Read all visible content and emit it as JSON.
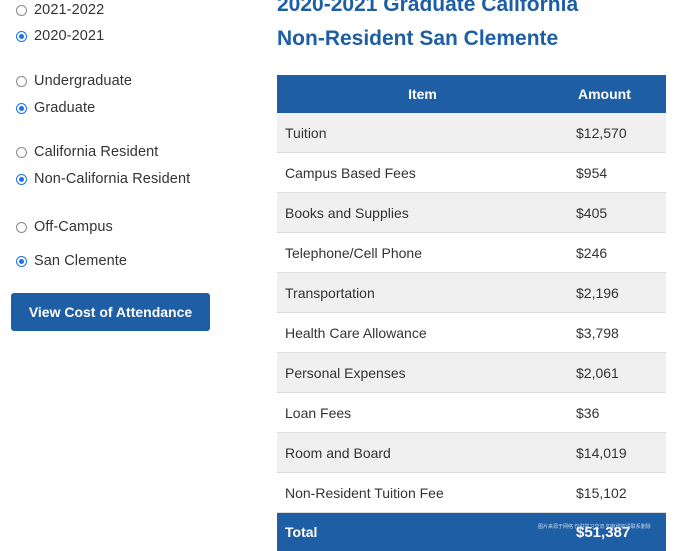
{
  "filters": {
    "year": {
      "options": [
        {
          "label": "2021-2022",
          "checked": false
        },
        {
          "label": "2020-2021",
          "checked": true
        }
      ]
    },
    "level": {
      "options": [
        {
          "label": "Undergraduate",
          "checked": false
        },
        {
          "label": "Graduate",
          "checked": true
        }
      ]
    },
    "residency": {
      "options": [
        {
          "label": "California Resident",
          "checked": false
        },
        {
          "label": "Non-California Resident",
          "checked": true
        }
      ]
    },
    "housing": {
      "options": [
        {
          "label": "Off-Campus",
          "checked": false
        },
        {
          "label": "San Clemente",
          "checked": true
        }
      ]
    }
  },
  "cta_label": "View Cost of Attendance",
  "result": {
    "title_line1": "2020-2021 Graduate California",
    "title_line2": "Non-Resident San Clemente",
    "table": {
      "headers": {
        "item": "Item",
        "amount": "Amount"
      },
      "rows": [
        {
          "item": "Tuition",
          "amount": "$12,570"
        },
        {
          "item": "Campus Based Fees",
          "amount": "$954"
        },
        {
          "item": "Books and Supplies",
          "amount": "$405"
        },
        {
          "item": "Telephone/Cell Phone",
          "amount": "$246"
        },
        {
          "item": "Transportation",
          "amount": "$2,196"
        },
        {
          "item": "Health Care Allowance",
          "amount": "$3,798"
        },
        {
          "item": "Personal Expenses",
          "amount": "$2,061"
        },
        {
          "item": "Loan Fees",
          "amount": "$36"
        },
        {
          "item": "Room and Board",
          "amount": "$14,019"
        },
        {
          "item": "Non-Resident Tuition Fee",
          "amount": "$15,102"
        }
      ],
      "total": {
        "item": "Total",
        "amount": "$51,387"
      }
    }
  },
  "watermark": "图片来源于网络 仅供学习交流 如有侵权请联系删除"
}
